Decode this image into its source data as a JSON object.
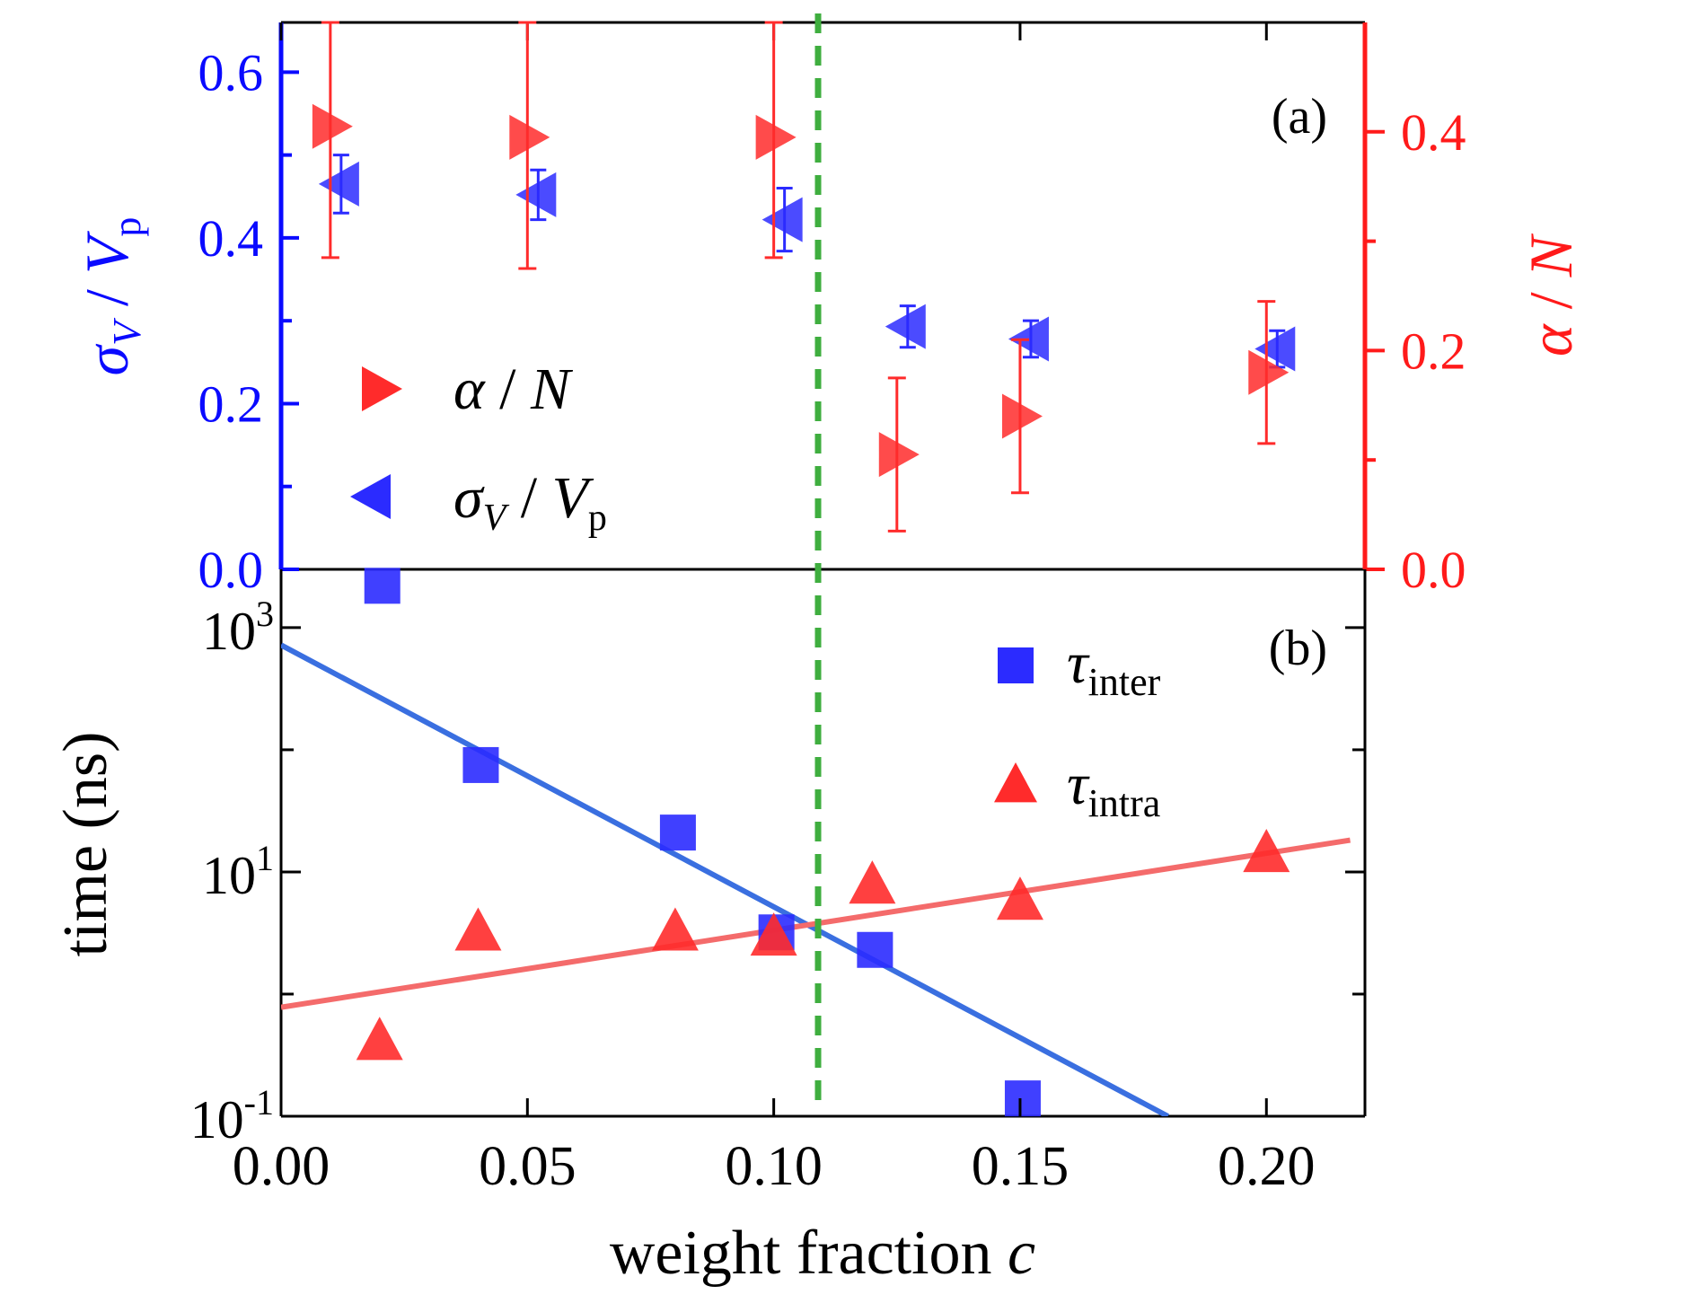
{
  "colors": {
    "blue": "#0a0aff",
    "red": "#ff1a1a",
    "blue_marker": "#2b2bff",
    "red_marker": "#ff2b2b",
    "blue_line": "#3a6fe0",
    "red_line": "#f46b6b",
    "green": "#3fae3f",
    "axis": "#000000"
  },
  "shared": {
    "xlabel_main": "weight fraction ",
    "xlabel_var": "c",
    "xlim": [
      0,
      0.22
    ],
    "xticks": [
      0.0,
      0.05,
      0.1,
      0.15,
      0.2
    ],
    "xtick_labels": [
      "0.00",
      "0.05",
      "0.10",
      "0.15",
      "0.20"
    ],
    "vline_x": 0.109
  },
  "chart_data": [
    {
      "type": "scatter",
      "panel": "(a)",
      "ylabel_left": {
        "sym": "σ",
        "sub": "V",
        "sep": " / ",
        "sym2": "V",
        "sub2": "p"
      },
      "ylabel_right": {
        "sym": "α",
        "sep": " / ",
        "sym2": "N"
      },
      "ylim_left": [
        0.0,
        0.66
      ],
      "yticks_left": [
        0.0,
        0.2,
        0.4,
        0.6
      ],
      "ytick_labels_left": [
        "0.0",
        "0.2",
        "0.4",
        "0.6"
      ],
      "ylim_right": [
        0.0,
        0.5
      ],
      "yticks_right": [
        0.0,
        0.2,
        0.4
      ],
      "ytick_labels_right": [
        "0.0",
        "0.2",
        "0.4"
      ],
      "series": [
        {
          "name": "α / N",
          "axis": "right",
          "marker": "triangle-right",
          "x": [
            0.01,
            0.05,
            0.1,
            0.125,
            0.15,
            0.2
          ],
          "y": [
            0.405,
            0.395,
            0.395,
            0.105,
            0.14,
            0.18
          ],
          "err": [
            0.12,
            0.12,
            0.11,
            0.07,
            0.07,
            0.065
          ]
        },
        {
          "name": "σV / Vp",
          "axis": "left",
          "marker": "triangle-left",
          "x": [
            0.01,
            0.05,
            0.1,
            0.125,
            0.15,
            0.2
          ],
          "y": [
            0.465,
            0.452,
            0.422,
            0.293,
            0.278,
            0.266
          ],
          "err": [
            0.035,
            0.03,
            0.038,
            0.025,
            0.022,
            0.022
          ]
        }
      ],
      "legend": [
        {
          "sym": "α",
          "sep": " / ",
          "sym2": "N",
          "sub2": ""
        },
        {
          "sym": "σ",
          "sub": "V",
          "sep": " / ",
          "sym2": "V",
          "sub2": "p"
        }
      ]
    },
    {
      "type": "scatter",
      "panel": "(b)",
      "ylabel": "time (ns)",
      "yscale": "log",
      "ylim": [
        0.1,
        3000
      ],
      "yticks": [
        0.1,
        10,
        1000
      ],
      "ytick_labels": [
        {
          "base": "10",
          "exp": "-1"
        },
        {
          "base": "10",
          "exp": "1"
        },
        {
          "base": "10",
          "exp": "3"
        }
      ],
      "series": [
        {
          "name": "τinter",
          "marker": "square",
          "x": [
            0.02,
            0.04,
            0.08,
            0.1,
            0.12,
            0.15
          ],
          "y": [
            2200,
            75,
            21,
            3.2,
            2.3,
            0.14
          ]
        },
        {
          "name": "τintra",
          "marker": "triangle-up",
          "x": [
            0.02,
            0.04,
            0.08,
            0.1,
            0.12,
            0.15,
            0.2
          ],
          "y": [
            0.42,
            3.3,
            3.3,
            3.0,
            8.0,
            5.9,
            14.5
          ]
        }
      ],
      "fits": [
        {
          "name": "τinter fit",
          "x": [
            0.0,
            0.18
          ],
          "y": [
            720,
            0.1
          ]
        },
        {
          "name": "τintra fit",
          "x": [
            0.0,
            0.217
          ],
          "y": [
            0.78,
            18.2
          ]
        }
      ],
      "legend": [
        {
          "sym": "τ",
          "sub": "inter"
        },
        {
          "sym": "τ",
          "sub": "intra"
        }
      ]
    }
  ]
}
